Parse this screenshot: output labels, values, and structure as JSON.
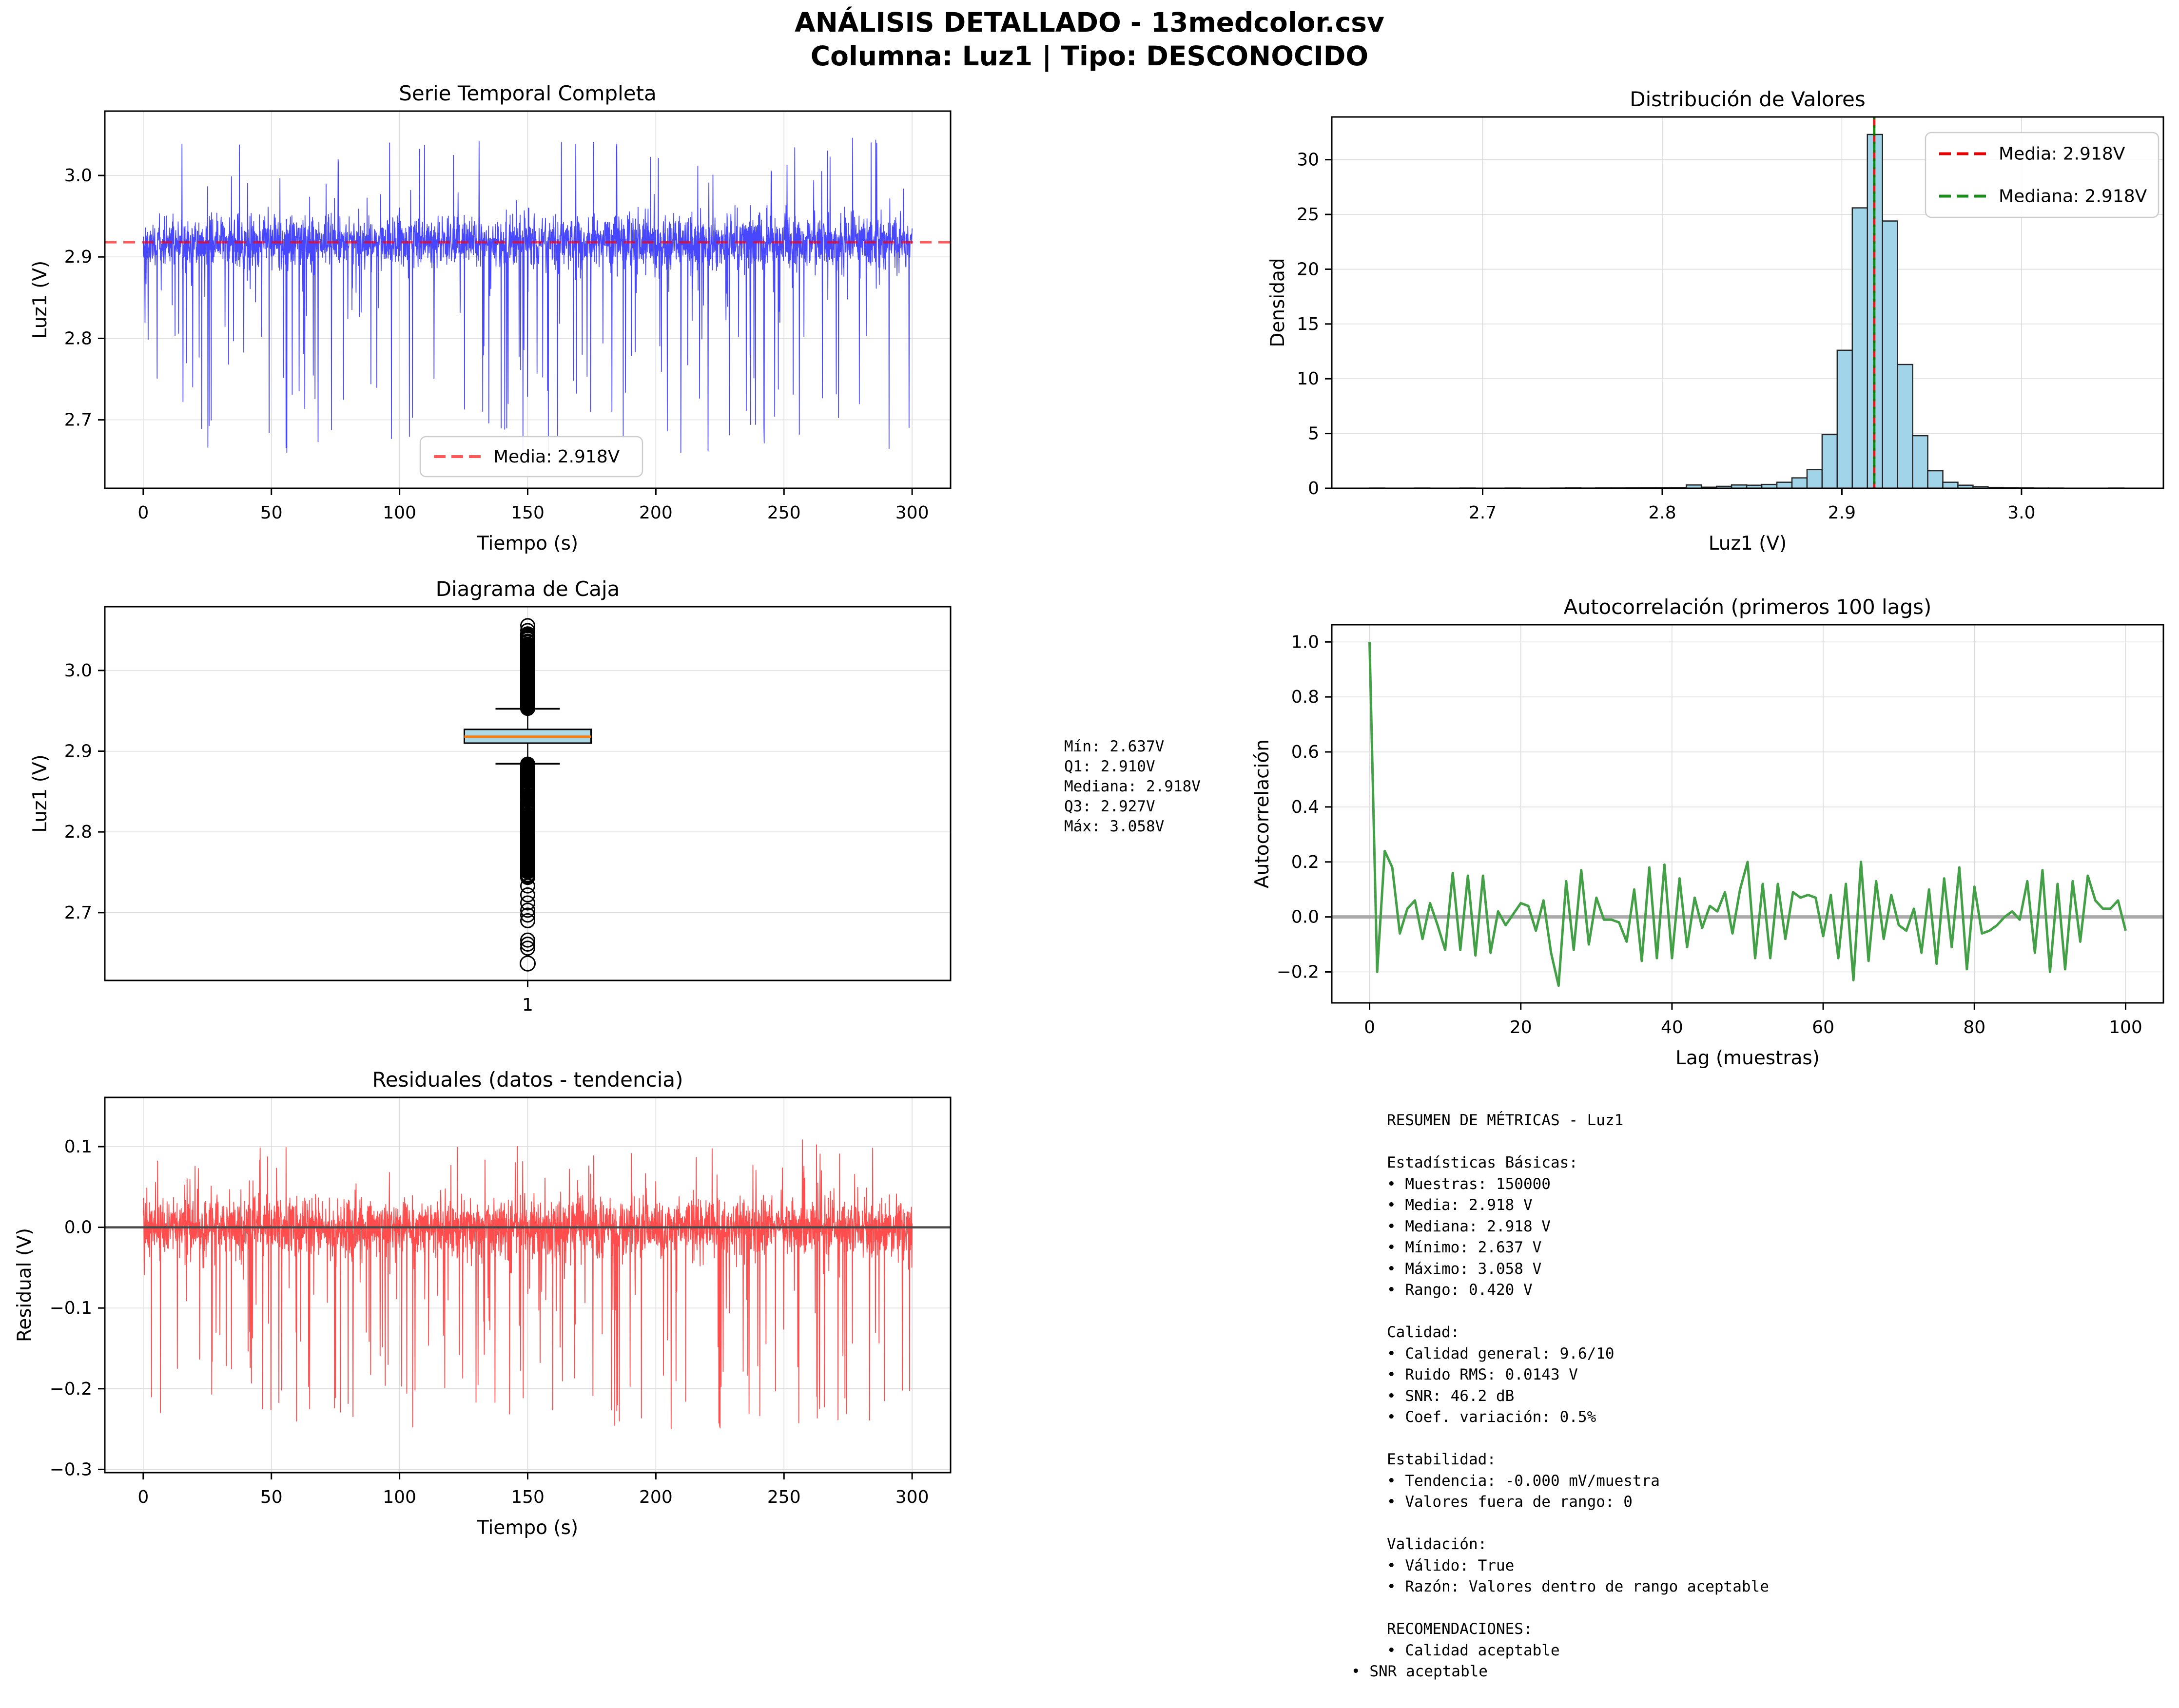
{
  "header": {
    "line1": "ANÁLISIS DETALLADO - 13medcolor.csv",
    "line2": "Columna: Luz1 | Tipo: DESCONOCIDO"
  },
  "colors": {
    "series_blue": "rgba(0,0,255,0.72)",
    "mean_red_dash": "rgba(255,0,0,0.65)",
    "legend_red": "#e60000",
    "legend_green": "#1a8c1a",
    "hist_fill": "#a1d4e8",
    "hist_edge": "#262626",
    "hist_mean_red": "rgba(230,0,0,0.9)",
    "hist_median_green": "rgba(0,128,0,0.9)",
    "box_fill": "#add8e6",
    "box_median_orange": "#ff7f0e",
    "acf_green": "#43a047",
    "residual_red": "rgba(255,0,0,0.7)",
    "zero_gray_light": "#ababab",
    "zero_gray_dark": "#4a4a4a",
    "grid": "#dcdcdc",
    "spine": "#000000",
    "legend_border": "#cccccc"
  },
  "chart_data": [
    {
      "id": "serie_temporal",
      "type": "line",
      "title": "Serie Temporal Completa",
      "xlabel": "Tiempo (s)",
      "ylabel": "Luz1 (V)",
      "xdomain": [
        -15,
        315
      ],
      "ydomain": [
        2.616,
        3.079
      ],
      "xticks": [
        {
          "v": 0,
          "label": "0"
        },
        {
          "v": 50,
          "label": "50"
        },
        {
          "v": 100,
          "label": "100"
        },
        {
          "v": 150,
          "label": "150"
        },
        {
          "v": 200,
          "label": "200"
        },
        {
          "v": 250,
          "label": "250"
        },
        {
          "v": 300,
          "label": "300"
        }
      ],
      "yticks": [
        {
          "v": 2.7,
          "label": "2.7"
        },
        {
          "v": 2.8,
          "label": "2.8"
        },
        {
          "v": 2.9,
          "label": "2.9"
        },
        {
          "v": 3.0,
          "label": "3.0"
        }
      ],
      "mean_line": {
        "value": 2.918
      },
      "legend": [
        {
          "label": "Media: 2.918V",
          "dash": true,
          "colorKey": "mean_red_dash"
        }
      ],
      "series_params": {
        "note": "dense noise band, procedurally generated to match visual density",
        "n": 3000,
        "t_max": 300,
        "mean": 2.918,
        "sigma": 0.016,
        "dip_prob": 0.05,
        "dip_min": 0.04,
        "dip_max": 0.26,
        "spike_prob": 0.02,
        "spike_min": 0.03,
        "spike_max": 0.13,
        "clamp": [
          2.637,
          3.058
        ],
        "seed": 42
      }
    },
    {
      "id": "distribucion",
      "type": "histogram",
      "title": "Distribución de Valores",
      "xlabel": "Luz1 (V)",
      "ylabel": "Densidad",
      "xdomain": [
        2.616,
        3.079
      ],
      "ydomain": [
        0,
        33.9
      ],
      "xticks": [
        {
          "v": 2.7,
          "label": "2.7"
        },
        {
          "v": 2.8,
          "label": "2.8"
        },
        {
          "v": 2.9,
          "label": "2.9"
        },
        {
          "v": 3.0,
          "label": "3.0"
        }
      ],
      "yticks": [
        {
          "v": 0,
          "label": "0"
        },
        {
          "v": 5,
          "label": "5"
        },
        {
          "v": 10,
          "label": "10"
        },
        {
          "v": 15,
          "label": "15"
        },
        {
          "v": 20,
          "label": "20"
        },
        {
          "v": 25,
          "label": "25"
        },
        {
          "v": 30,
          "label": "30"
        }
      ],
      "bin_start": 2.637,
      "bin_width": 0.0084,
      "densities": [
        0.02,
        0,
        0,
        0.02,
        0,
        0,
        0.02,
        0,
        0,
        0.02,
        0,
        0,
        0.02,
        0.03,
        0.02,
        0.03,
        0.03,
        0.04,
        0.05,
        0.05,
        0.06,
        0.3,
        0.1,
        0.18,
        0.3,
        0.28,
        0.35,
        0.55,
        0.95,
        1.7,
        4.9,
        12.6,
        25.6,
        32.3,
        24.4,
        11.3,
        4.8,
        1.6,
        0.55,
        0.28,
        0.14,
        0.08,
        0.05,
        0.03,
        0.02,
        0.02,
        0.01,
        0.01,
        0.01,
        0.02
      ],
      "mean": 2.918,
      "median": 2.918,
      "legend": [
        {
          "label": "Media: 2.918V",
          "dash": true,
          "colorKey": "legend_red"
        },
        {
          "label": "Mediana: 2.918V",
          "dash": true,
          "colorKey": "legend_green"
        }
      ]
    },
    {
      "id": "caja",
      "type": "box",
      "title": "Diagrama de Caja",
      "xlabel": "",
      "ylabel": "Luz1 (V)",
      "xdomain": [
        0.5,
        1.5
      ],
      "ydomain": [
        2.616,
        3.079
      ],
      "xticks": [
        {
          "v": 1,
          "label": "1"
        }
      ],
      "yticks": [
        {
          "v": 2.7,
          "label": "2.7"
        },
        {
          "v": 2.8,
          "label": "2.8"
        },
        {
          "v": 2.9,
          "label": "2.9"
        },
        {
          "v": 3.0,
          "label": "3.0"
        }
      ],
      "stats": {
        "min": 2.637,
        "q1": 2.91,
        "median": 2.918,
        "q3": 2.927,
        "whisker_low": 2.8845,
        "whisker_high": 2.9525,
        "max": 3.058
      },
      "outliers": {
        "above": {
          "from": 2.953,
          "to": 3.046,
          "count": 170,
          "seed": 7
        },
        "extremes_above": [
          3.0555,
          3.0495
        ],
        "below": {
          "from": 2.884,
          "to": 2.742,
          "count": 260,
          "seed": 9
        },
        "sparse_below": [
          2.733,
          2.722,
          2.712,
          2.703,
          2.697,
          2.69,
          2.666,
          2.661,
          2.656
        ],
        "isolated": [
          2.637
        ]
      }
    },
    {
      "id": "autocorrelacion",
      "type": "line",
      "title": "Autocorrelación (primeros 100 lags)",
      "xlabel": "Lag (muestras)",
      "ylabel": "Autocorrelación",
      "xdomain": [
        -5,
        105
      ],
      "ydomain": [
        -0.3125,
        1.0625
      ],
      "xticks": [
        {
          "v": 0,
          "label": "0"
        },
        {
          "v": 20,
          "label": "20"
        },
        {
          "v": 40,
          "label": "40"
        },
        {
          "v": 60,
          "label": "60"
        },
        {
          "v": 80,
          "label": "80"
        },
        {
          "v": 100,
          "label": "100"
        }
      ],
      "yticks": [
        {
          "v": -0.2,
          "label": "−0.2"
        },
        {
          "v": 0.0,
          "label": "0.0"
        },
        {
          "v": 0.2,
          "label": "0.2"
        },
        {
          "v": 0.4,
          "label": "0.4"
        },
        {
          "v": 0.6,
          "label": "0.6"
        },
        {
          "v": 0.8,
          "label": "0.8"
        },
        {
          "v": 1.0,
          "label": "1.0"
        }
      ],
      "zero_line": "light",
      "values": [
        1.0,
        -0.2,
        0.24,
        0.18,
        -0.06,
        0.03,
        0.06,
        -0.08,
        0.05,
        -0.03,
        -0.12,
        0.16,
        -0.12,
        0.15,
        -0.14,
        0.15,
        -0.13,
        0.02,
        -0.03,
        0.01,
        0.05,
        0.04,
        -0.05,
        0.06,
        -0.13,
        -0.25,
        0.13,
        -0.12,
        0.17,
        -0.1,
        0.07,
        -0.01,
        -0.01,
        -0.02,
        -0.09,
        0.1,
        -0.16,
        0.18,
        -0.15,
        0.19,
        -0.15,
        0.14,
        -0.11,
        0.07,
        -0.04,
        0.04,
        0.02,
        0.09,
        -0.06,
        0.1,
        0.2,
        -0.15,
        0.12,
        -0.15,
        0.12,
        -0.08,
        0.09,
        0.07,
        0.08,
        0.07,
        -0.07,
        0.08,
        -0.15,
        0.12,
        -0.23,
        0.2,
        -0.16,
        0.13,
        -0.08,
        0.08,
        -0.03,
        -0.05,
        0.03,
        -0.13,
        0.1,
        -0.17,
        0.14,
        -0.11,
        0.18,
        -0.19,
        0.11,
        -0.06,
        -0.05,
        -0.03,
        0.0,
        0.02,
        -0.01,
        0.13,
        -0.13,
        0.17,
        -0.2,
        0.12,
        -0.19,
        0.13,
        -0.09,
        0.15,
        0.06,
        0.03,
        0.03,
        0.06,
        -0.05
      ]
    },
    {
      "id": "residuales",
      "type": "line",
      "title": "Residuales (datos - tendencia)",
      "xlabel": "Tiempo (s)",
      "ylabel": "Residual (V)",
      "xdomain": [
        -15,
        315
      ],
      "ydomain": [
        -0.304,
        0.161
      ],
      "xticks": [
        {
          "v": 0,
          "label": "0"
        },
        {
          "v": 50,
          "label": "50"
        },
        {
          "v": 100,
          "label": "100"
        },
        {
          "v": 150,
          "label": "150"
        },
        {
          "v": 200,
          "label": "200"
        },
        {
          "v": 250,
          "label": "250"
        },
        {
          "v": 300,
          "label": "300"
        }
      ],
      "yticks": [
        {
          "v": -0.3,
          "label": "−0.3"
        },
        {
          "v": -0.2,
          "label": "−0.2"
        },
        {
          "v": -0.1,
          "label": "−0.1"
        },
        {
          "v": 0.0,
          "label": "0.0"
        },
        {
          "v": 0.1,
          "label": "0.1"
        }
      ],
      "zero_line": "dark",
      "series_params": {
        "note": "residual noise around zero, procedurally generated to match visual density",
        "n": 3000,
        "t_max": 300,
        "mean": 0,
        "sigma": 0.017,
        "dip_prob": 0.055,
        "dip_min": 0.03,
        "dip_max": 0.25,
        "spike_prob": 0.03,
        "spike_min": 0.02,
        "spike_max": 0.11,
        "clamp": [
          -0.285,
          0.142
        ],
        "seed": 77
      }
    }
  ],
  "stats_panel": {
    "lines": [
      "Mín: 2.637V",
      "Q1: 2.910V",
      "Mediana: 2.918V",
      "Q3: 2.927V",
      "Máx: 3.058V"
    ]
  },
  "metrics_panel": {
    "lines": [
      "RESUMEN DE MÉTRICAS - Luz1",
      "",
      "Estadísticas Básicas:",
      "• Muestras: 150000",
      "• Media: 2.918 V",
      "• Mediana: 2.918 V",
      "• Mínimo: 2.637 V",
      "• Máximo: 3.058 V",
      "• Rango: 0.420 V",
      "",
      "Calidad:",
      "• Calidad general: 9.6/10",
      "• Ruido RMS: 0.0143 V",
      "• SNR: 46.2 dB",
      "• Coef. variación: 0.5%",
      "",
      "Estabilidad:",
      "• Tendencia: -0.000 mV/muestra",
      "• Valores fuera de rango: 0",
      "",
      "Validación:",
      "• Válido: True",
      "• Razón: Valores dentro de rango aceptable",
      "",
      "RECOMENDACIONES:",
      "• Calidad aceptable"
    ],
    "outdented_line": "• SNR aceptable"
  }
}
